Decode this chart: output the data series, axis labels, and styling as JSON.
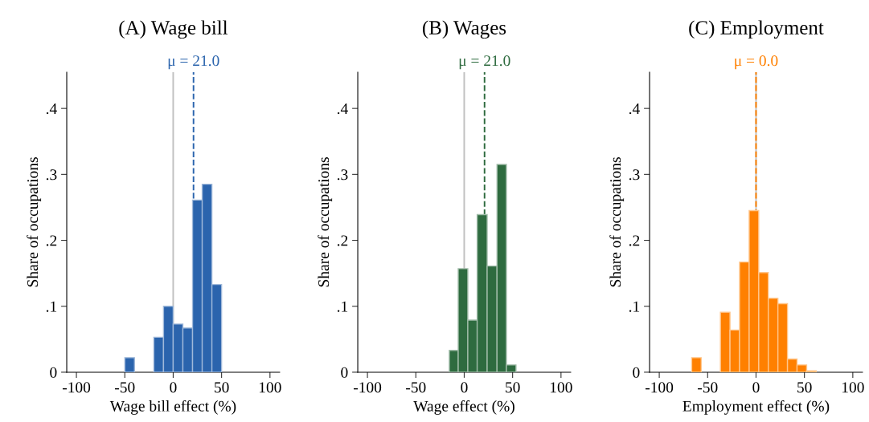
{
  "chart_data": [
    {
      "type": "histogram",
      "title": "(A) Wage bill",
      "xlabel": "Wage bill effect (%)",
      "ylabel": "Share of occupations",
      "bins": [
        -50,
        -40,
        -30,
        -20,
        -10,
        0,
        10,
        20,
        30,
        40,
        50
      ],
      "values": [
        0.022,
        0,
        0,
        0.053,
        0.1,
        0.073,
        0.067,
        0.261,
        0.285,
        0.133
      ],
      "color": "#2b64ad",
      "xlim": [
        -110,
        110
      ],
      "ylim": [
        0,
        0.455
      ],
      "xticks": [
        -100,
        -50,
        0,
        50,
        100
      ],
      "yticks": [
        0,
        {
          "value": 0.1,
          "label": ".1"
        },
        {
          "value": 0.2,
          "label": ".2"
        },
        {
          "value": 0.3,
          "label": ".3"
        },
        {
          "value": 0.4,
          "label": ".4"
        }
      ],
      "ref_lines": [
        {
          "axis": "x",
          "value": 0,
          "color": "#c0c0c0",
          "line_style": "solid"
        },
        {
          "axis": "x",
          "value": 21.0,
          "label": "μ = 21.0",
          "color": "#2b64ad",
          "line_style": "dashed"
        }
      ],
      "grid": false
    },
    {
      "type": "histogram",
      "title": "(B) Wages",
      "xlabel": "Wage effect (%)",
      "ylabel": "Share of occupations",
      "bins": [
        -15.4,
        -6.2,
        3.7,
        13.4,
        23.7,
        33.9,
        43.6,
        53.5
      ],
      "values": [
        0.033,
        0.157,
        0.079,
        0.239,
        0.161,
        0.315,
        0.011
      ],
      "color": "#2e6b3f",
      "xlim": [
        -110,
        110
      ],
      "ylim": [
        0,
        0.455
      ],
      "xticks": [
        -100,
        -50,
        0,
        50,
        100
      ],
      "yticks": [
        0,
        {
          "value": 0.1,
          "label": ".1"
        },
        {
          "value": 0.2,
          "label": ".2"
        },
        {
          "value": 0.3,
          "label": ".3"
        },
        {
          "value": 0.4,
          "label": ".4"
        }
      ],
      "ref_lines": [
        {
          "axis": "x",
          "value": 0,
          "color": "#c0c0c0",
          "line_style": "solid"
        },
        {
          "axis": "x",
          "value": 21.0,
          "label": "μ = 21.0",
          "color": "#2e6b3f",
          "line_style": "dashed"
        }
      ],
      "grid": false
    },
    {
      "type": "histogram",
      "title": "(C) Employment",
      "xlabel": "Employment effect (%)",
      "ylabel": "Share of occupations",
      "bins": [
        -66.5,
        -56.6,
        -46.7,
        -36.8,
        -26.9,
        -17.0,
        -7.1,
        2.8,
        12.7,
        22.6,
        32.5,
        42.4,
        52.3,
        62.2
      ],
      "values": [
        0.022,
        0,
        0,
        0.091,
        0.064,
        0.167,
        0.245,
        0.151,
        0.112,
        0.104,
        0.02,
        0.011,
        0.002
      ],
      "color": "#ff8000",
      "xlim": [
        -110,
        110
      ],
      "ylim": [
        0,
        0.455
      ],
      "xticks": [
        -100,
        -50,
        0,
        50,
        100
      ],
      "yticks": [
        0,
        {
          "value": 0.1,
          "label": ".1"
        },
        {
          "value": 0.2,
          "label": ".2"
        },
        {
          "value": 0.3,
          "label": ".3"
        },
        {
          "value": 0.4,
          "label": ".4"
        }
      ],
      "ref_lines": [
        {
          "axis": "x",
          "value": 0,
          "color": "#c0c0c0",
          "line_style": "solid"
        },
        {
          "axis": "x",
          "value": 0.0,
          "label": "μ = 0.0",
          "color": "#ff8000",
          "line_style": "dashed"
        }
      ],
      "grid": false
    }
  ]
}
